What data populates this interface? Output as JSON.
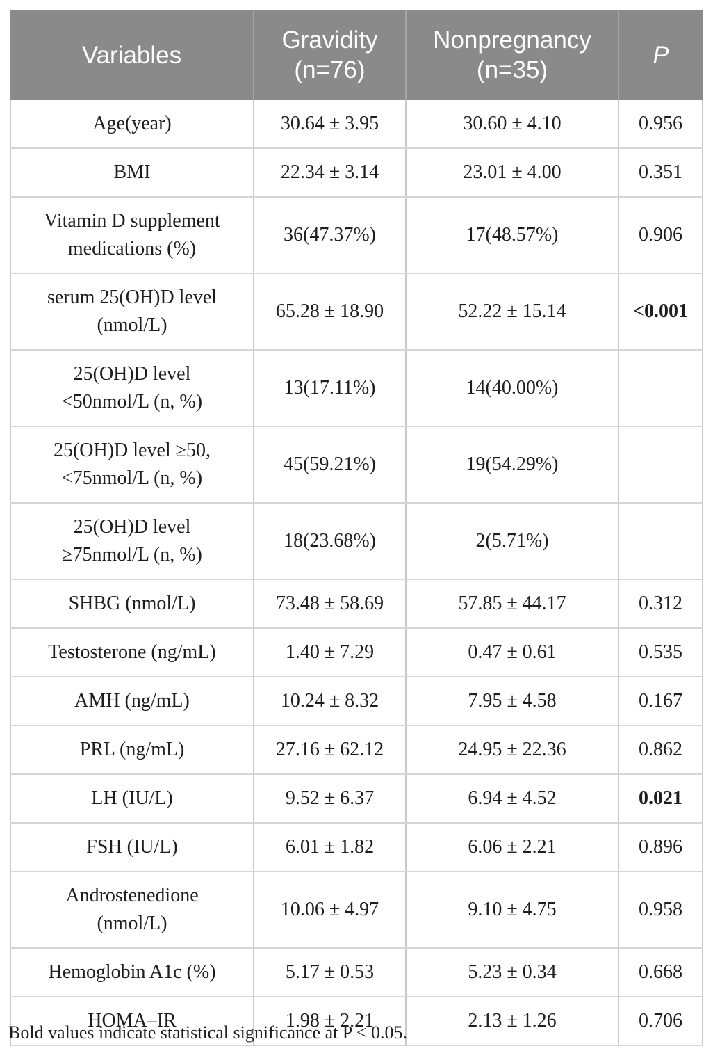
{
  "table": {
    "columns": [
      {
        "label": "Variables"
      },
      {
        "label": "Gravidity (n=76)"
      },
      {
        "label": "Nonpregnancy (n=35)"
      },
      {
        "label": "P"
      }
    ],
    "rows": [
      {
        "variable": "Age(year)",
        "gravidity": "30.64 ± 3.95",
        "nonpregnancy": "30.60 ± 4.10",
        "p": "0.956",
        "p_bold": false
      },
      {
        "variable": "BMI",
        "gravidity": "22.34 ± 3.14",
        "nonpregnancy": "23.01 ± 4.00",
        "p": "0.351",
        "p_bold": false
      },
      {
        "variable": "Vitamin D supplement medications (%)",
        "gravidity": "36(47.37%)",
        "nonpregnancy": "17(48.57%)",
        "p": "0.906",
        "p_bold": false
      },
      {
        "variable": "serum 25(OH)D level (nmol/L)",
        "gravidity": "65.28 ± 18.90",
        "nonpregnancy": "52.22 ± 15.14",
        "p": "<0.001",
        "p_bold": true
      },
      {
        "variable": "25(OH)D level <50nmol/L (n, %)",
        "gravidity": "13(17.11%)",
        "nonpregnancy": "14(40.00%)",
        "p": "",
        "p_bold": false
      },
      {
        "variable": "25(OH)D level ≥50, <75nmol/L (n, %)",
        "gravidity": "45(59.21%)",
        "nonpregnancy": "19(54.29%)",
        "p": "",
        "p_bold": false
      },
      {
        "variable": "25(OH)D level ≥75nmol/L (n, %)",
        "gravidity": "18(23.68%)",
        "nonpregnancy": "2(5.71%)",
        "p": "",
        "p_bold": false
      },
      {
        "variable": "SHBG (nmol/L)",
        "gravidity": "73.48 ± 58.69",
        "nonpregnancy": "57.85 ± 44.17",
        "p": "0.312",
        "p_bold": false
      },
      {
        "variable": "Testosterone (ng/mL)",
        "gravidity": "1.40 ± 7.29",
        "nonpregnancy": "0.47 ± 0.61",
        "p": "0.535",
        "p_bold": false
      },
      {
        "variable": "AMH (ng/mL)",
        "gravidity": "10.24 ± 8.32",
        "nonpregnancy": "7.95 ± 4.58",
        "p": "0.167",
        "p_bold": false
      },
      {
        "variable": "PRL (ng/mL)",
        "gravidity": "27.16 ± 62.12",
        "nonpregnancy": "24.95 ± 22.36",
        "p": "0.862",
        "p_bold": false
      },
      {
        "variable": "LH (IU/L)",
        "gravidity": "9.52 ± 6.37",
        "nonpregnancy": "6.94 ± 4.52",
        "p": "0.021",
        "p_bold": true
      },
      {
        "variable": "FSH (IU/L)",
        "gravidity": "6.01 ± 1.82",
        "nonpregnancy": "6.06 ± 2.21",
        "p": "0.896",
        "p_bold": false
      },
      {
        "variable": "Androstenedione (nmol/L)",
        "gravidity": "10.06 ± 4.97",
        "nonpregnancy": "9.10 ± 4.75",
        "p": "0.958",
        "p_bold": false
      },
      {
        "variable": "Hemoglobin A1c (%)",
        "gravidity": "5.17 ± 0.53",
        "nonpregnancy": "5.23 ± 0.34",
        "p": "0.668",
        "p_bold": false
      },
      {
        "variable": "HOMA–IR",
        "gravidity": "1.98 ± 2.21",
        "nonpregnancy": "2.13 ± 1.26",
        "p": "0.706",
        "p_bold": false
      }
    ]
  },
  "footnote": "Bold values indicate statistical significance at P < 0.05.",
  "colors": {
    "header_bg": "#8a8a8a",
    "header_text": "#ffffff",
    "body_text": "#1e1e1e",
    "border": "#c9c9c9",
    "significance_style": "bold"
  }
}
